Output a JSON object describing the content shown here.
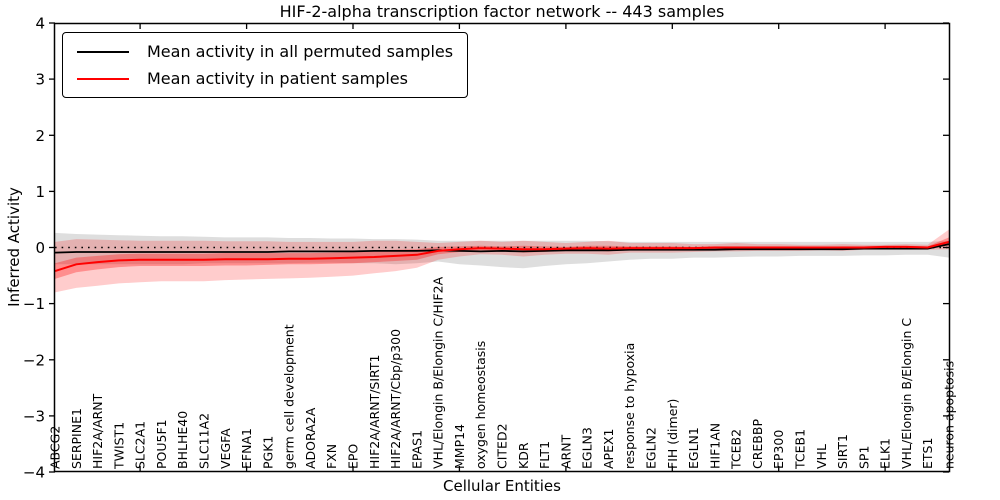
{
  "chart_data": {
    "type": "line",
    "title": "HIF-2-alpha transcription factor network -- 443 samples",
    "xlabel": "Cellular Entities",
    "ylabel": "Inferred Activity",
    "ylim": [
      -4,
      4
    ],
    "yticks": [
      -4,
      -3,
      -2,
      -1,
      0,
      1,
      2,
      3,
      4
    ],
    "grid": false,
    "legend_position": "upper left",
    "reference_line_y": 0,
    "categories": [
      "ABCG2",
      "SERPINE1",
      "HIF2A/ARNT",
      "TWIST1",
      "SLC2A1",
      "POU5F1",
      "BHLHE40",
      "SLC11A2",
      "VEGFA",
      "EFNA1",
      "PGK1",
      "germ cell development",
      "ADORA2A",
      "FXN",
      "EPO",
      "HIF2A/ARNT/SIRT1",
      "HIF2A/ARNT/Cbp/p300",
      "EPAS1",
      "VHL/Elongin B/Elongin C/HIF2A",
      "MMP14",
      "oxygen homeostasis",
      "CITED2",
      "KDR",
      "FLT1",
      "ARNT",
      "EGLN3",
      "APEX1",
      "response to hypoxia",
      "EGLN2",
      "FIH (dimer)",
      "EGLN1",
      "HIF1AN",
      "TCEB2",
      "CREBBP",
      "EP300",
      "TCEB1",
      "VHL",
      "SIRT1",
      "SP1",
      "ELK1",
      "VHL/Elongin B/Elongin C",
      "ETS1",
      "neuron apoptosis"
    ],
    "series": [
      {
        "name": "Mean activity in all permuted samples",
        "color": "#000000",
        "values": [
          -0.09,
          -0.08,
          -0.08,
          -0.08,
          -0.08,
          -0.08,
          -0.08,
          -0.08,
          -0.08,
          -0.08,
          -0.08,
          -0.07,
          -0.07,
          -0.07,
          -0.07,
          -0.06,
          -0.06,
          -0.06,
          -0.05,
          -0.06,
          -0.07,
          -0.06,
          -0.07,
          -0.06,
          -0.05,
          -0.05,
          -0.05,
          -0.04,
          -0.04,
          -0.04,
          -0.04,
          -0.04,
          -0.03,
          -0.03,
          -0.03,
          -0.03,
          -0.03,
          -0.03,
          -0.02,
          -0.02,
          -0.02,
          -0.02,
          0.06
        ],
        "band_upper": [
          0.26,
          0.24,
          0.23,
          0.22,
          0.21,
          0.2,
          0.2,
          0.19,
          0.18,
          0.18,
          0.18,
          0.17,
          0.17,
          0.16,
          0.16,
          0.15,
          0.15,
          0.14,
          0.12,
          0.12,
          0.12,
          0.12,
          0.12,
          0.12,
          0.12,
          0.12,
          0.11,
          0.1,
          0.1,
          0.1,
          0.1,
          0.1,
          0.1,
          0.1,
          0.1,
          0.1,
          0.1,
          0.1,
          0.1,
          0.1,
          0.1,
          0.1,
          0.12
        ],
        "band_lower": [
          -0.3,
          -0.3,
          -0.3,
          -0.3,
          -0.3,
          -0.3,
          -0.3,
          -0.28,
          -0.28,
          -0.28,
          -0.28,
          -0.28,
          -0.27,
          -0.27,
          -0.28,
          -0.28,
          -0.3,
          -0.28,
          -0.25,
          -0.3,
          -0.32,
          -0.35,
          -0.37,
          -0.33,
          -0.3,
          -0.28,
          -0.25,
          -0.22,
          -0.2,
          -0.2,
          -0.18,
          -0.18,
          -0.17,
          -0.16,
          -0.16,
          -0.15,
          -0.15,
          -0.15,
          -0.14,
          -0.14,
          -0.13,
          -0.13,
          -0.18
        ]
      },
      {
        "name": "Mean activity in patient samples",
        "color": "#ff0000",
        "values": [
          -0.42,
          -0.3,
          -0.26,
          -0.23,
          -0.22,
          -0.22,
          -0.22,
          -0.22,
          -0.21,
          -0.21,
          -0.21,
          -0.2,
          -0.2,
          -0.19,
          -0.18,
          -0.17,
          -0.15,
          -0.13,
          -0.06,
          -0.03,
          -0.01,
          -0.02,
          -0.03,
          -0.03,
          -0.02,
          -0.01,
          -0.02,
          -0.01,
          -0.01,
          -0.01,
          -0.01,
          0.0,
          0.0,
          0.0,
          0.0,
          0.0,
          0.0,
          0.0,
          0.0,
          0.01,
          0.01,
          0.0,
          0.1
        ],
        "band_upper": [
          0.1,
          0.15,
          0.14,
          0.13,
          0.12,
          0.12,
          0.12,
          0.12,
          0.11,
          0.11,
          0.11,
          0.1,
          0.1,
          0.1,
          0.1,
          0.12,
          0.12,
          0.1,
          0.08,
          0.1,
          0.12,
          0.1,
          0.12,
          0.1,
          0.08,
          0.1,
          0.12,
          0.08,
          0.08,
          0.08,
          0.06,
          0.06,
          0.08,
          0.06,
          0.06,
          0.05,
          0.05,
          0.06,
          0.05,
          0.05,
          0.06,
          0.05,
          0.32
        ],
        "band_lower": [
          -0.8,
          -0.72,
          -0.68,
          -0.64,
          -0.62,
          -0.6,
          -0.6,
          -0.6,
          -0.58,
          -0.57,
          -0.56,
          -0.55,
          -0.54,
          -0.52,
          -0.5,
          -0.46,
          -0.42,
          -0.36,
          -0.22,
          -0.16,
          -0.12,
          -0.13,
          -0.16,
          -0.13,
          -0.11,
          -0.11,
          -0.13,
          -0.09,
          -0.09,
          -0.09,
          -0.08,
          -0.07,
          -0.07,
          -0.06,
          -0.06,
          -0.06,
          -0.05,
          -0.06,
          -0.04,
          -0.04,
          -0.04,
          -0.04,
          -0.03
        ],
        "inner_band_upper": [
          -0.28,
          -0.18,
          -0.15,
          -0.12,
          -0.11,
          -0.11,
          -0.11,
          -0.11,
          -0.1,
          -0.1,
          -0.1,
          -0.1,
          -0.1,
          -0.09,
          -0.08,
          -0.06,
          -0.04,
          -0.03,
          0.01,
          0.02,
          0.03,
          0.02,
          0.03,
          0.02,
          0.01,
          0.03,
          0.03,
          0.02,
          0.02,
          0.02,
          0.01,
          0.02,
          0.02,
          0.02,
          0.02,
          0.02,
          0.01,
          0.02,
          0.02,
          0.03,
          0.03,
          0.02,
          0.18
        ],
        "inner_band_lower": [
          -0.56,
          -0.44,
          -0.39,
          -0.35,
          -0.33,
          -0.33,
          -0.33,
          -0.33,
          -0.32,
          -0.32,
          -0.31,
          -0.3,
          -0.3,
          -0.29,
          -0.28,
          -0.26,
          -0.24,
          -0.22,
          -0.12,
          -0.08,
          -0.05,
          -0.06,
          -0.09,
          -0.08,
          -0.05,
          -0.05,
          -0.07,
          -0.04,
          -0.04,
          -0.04,
          -0.03,
          -0.03,
          -0.02,
          -0.02,
          -0.02,
          -0.02,
          -0.02,
          -0.02,
          -0.02,
          -0.01,
          -0.01,
          -0.02,
          0.03
        ]
      }
    ],
    "band_colors": {
      "permuted": "rgba(0,0,0,0.13)",
      "patient_outer": "rgba(255,0,0,0.20)",
      "patient_inner": "rgba(255,0,0,0.30)"
    },
    "axis_color": "#000000"
  }
}
